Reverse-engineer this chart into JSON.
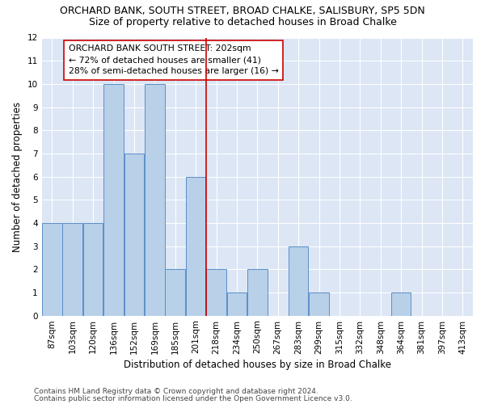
{
  "title": "ORCHARD BANK, SOUTH STREET, BROAD CHALKE, SALISBURY, SP5 5DN",
  "subtitle": "Size of property relative to detached houses in Broad Chalke",
  "xlabel": "Distribution of detached houses by size in Broad Chalke",
  "ylabel": "Number of detached properties",
  "categories": [
    "87sqm",
    "103sqm",
    "120sqm",
    "136sqm",
    "152sqm",
    "169sqm",
    "185sqm",
    "201sqm",
    "218sqm",
    "234sqm",
    "250sqm",
    "267sqm",
    "283sqm",
    "299sqm",
    "315sqm",
    "332sqm",
    "348sqm",
    "364sqm",
    "381sqm",
    "397sqm",
    "413sqm"
  ],
  "values": [
    4,
    4,
    4,
    10,
    7,
    10,
    2,
    6,
    2,
    1,
    2,
    0,
    3,
    1,
    0,
    0,
    0,
    1,
    0,
    0,
    0
  ],
  "bar_color": "#b8d0e8",
  "bar_edgecolor": "#5b8fc9",
  "property_line_x": 7.5,
  "property_line_color": "#cc0000",
  "annotation_text": "ORCHARD BANK SOUTH STREET: 202sqm\n← 72% of detached houses are smaller (41)\n28% of semi-detached houses are larger (16) →",
  "annotation_box_color": "#ffffff",
  "annotation_box_edgecolor": "#cc0000",
  "ylim": [
    0,
    12
  ],
  "yticks": [
    0,
    1,
    2,
    3,
    4,
    5,
    6,
    7,
    8,
    9,
    10,
    11,
    12
  ],
  "background_color": "#dce6f5",
  "grid_color": "#ffffff",
  "fig_background": "#ffffff",
  "footer1": "Contains HM Land Registry data © Crown copyright and database right 2024.",
  "footer2": "Contains public sector information licensed under the Open Government Licence v3.0.",
  "title_fontsize": 9,
  "subtitle_fontsize": 9,
  "annotation_fontsize": 7.8,
  "axis_label_fontsize": 8.5,
  "tick_fontsize": 7.5,
  "footer_fontsize": 6.5
}
